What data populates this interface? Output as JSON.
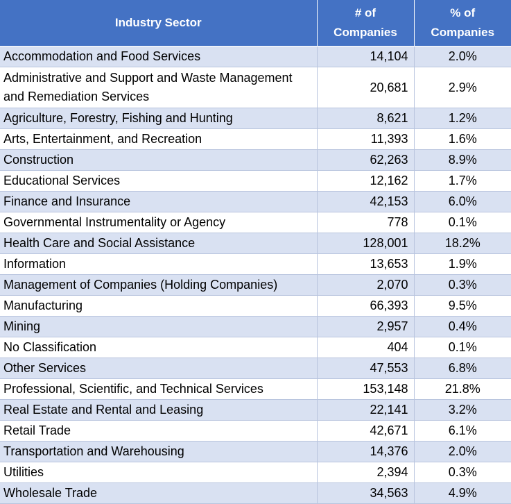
{
  "chart_data": {
    "type": "table",
    "columns": [
      "Industry Sector",
      "# of Companies",
      "% of Companies"
    ],
    "header_lines": [
      [
        "Industry Sector"
      ],
      [
        "# of",
        "Companies"
      ],
      [
        "% of",
        "Companies"
      ]
    ],
    "rows": [
      {
        "sector": "Accommodation and Food Services",
        "companies": "14,104",
        "percent": "2.0%"
      },
      {
        "sector": "Administrative and Support and Waste Management and Remediation Services",
        "companies": "20,681",
        "percent": "2.9%"
      },
      {
        "sector": "Agriculture, Forestry, Fishing and Hunting",
        "companies": "8,621",
        "percent": "1.2%"
      },
      {
        "sector": "Arts, Entertainment, and Recreation",
        "companies": "11,393",
        "percent": "1.6%"
      },
      {
        "sector": "Construction",
        "companies": "62,263",
        "percent": "8.9%"
      },
      {
        "sector": "Educational Services",
        "companies": "12,162",
        "percent": "1.7%"
      },
      {
        "sector": "Finance and Insurance",
        "companies": "42,153",
        "percent": "6.0%"
      },
      {
        "sector": "Governmental Instrumentality or Agency",
        "companies": "778",
        "percent": "0.1%"
      },
      {
        "sector": "Health Care and Social Assistance",
        "companies": "128,001",
        "percent": "18.2%"
      },
      {
        "sector": "Information",
        "companies": "13,653",
        "percent": "1.9%"
      },
      {
        "sector": "Management of Companies (Holding Companies)",
        "companies": "2,070",
        "percent": "0.3%"
      },
      {
        "sector": "Manufacturing",
        "companies": "66,393",
        "percent": "9.5%"
      },
      {
        "sector": "Mining",
        "companies": "2,957",
        "percent": "0.4%"
      },
      {
        "sector": "No Classification",
        "companies": "404",
        "percent": "0.1%"
      },
      {
        "sector": "Other Services",
        "companies": "47,553",
        "percent": "6.8%"
      },
      {
        "sector": "Professional, Scientific, and Technical Services",
        "companies": "153,148",
        "percent": "21.8%"
      },
      {
        "sector": "Real Estate and Rental and Leasing",
        "companies": "22,141",
        "percent": "3.2%"
      },
      {
        "sector": "Retail Trade",
        "companies": "42,671",
        "percent": "6.1%"
      },
      {
        "sector": "Transportation and Warehousing",
        "companies": "14,376",
        "percent": "2.0%"
      },
      {
        "sector": "Utilities",
        "companies": "2,394",
        "percent": "0.3%"
      },
      {
        "sector": "Wholesale  Trade",
        "companies": "34,563",
        "percent": "4.9%"
      }
    ]
  },
  "colors": {
    "header_bg": "#4472c4",
    "header_text": "#ffffff",
    "band_row": "#d9e1f2",
    "plain_row": "#ffffff",
    "grid": "#b8c4de"
  }
}
